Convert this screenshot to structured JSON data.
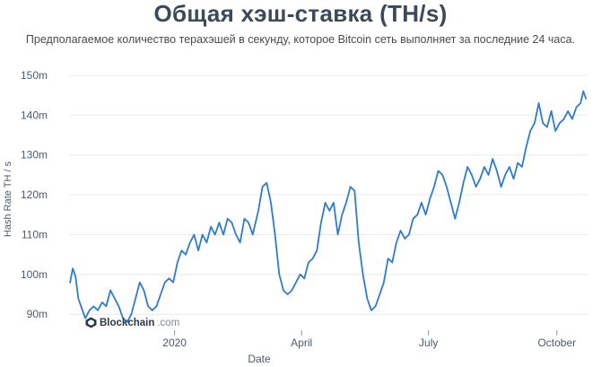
{
  "header": {
    "title": "Общая хэш-ставка (TH/s)",
    "subtitle": "Предполагаемое количество терахэшей в секунду, которое Bitcoin сеть выполняет за последние 24 часа."
  },
  "watermark": {
    "brand": "Blockchain",
    "suffix": ".com",
    "icon": "blockchain-logo-icon"
  },
  "colors": {
    "line": "#2f7bd0",
    "grid": "#e6e9ee",
    "text": "#4c5a6a"
  },
  "chart_data": {
    "type": "line",
    "xlabel": "Date",
    "ylabel": "Hash Rate TH / s",
    "x_ticks": [
      "2020",
      "April",
      "July",
      "October"
    ],
    "x_tick_dates": [
      "2020-01-01",
      "2020-04-01",
      "2020-07-01",
      "2020-10-01"
    ],
    "x_range": [
      "2019-10-18",
      "2020-10-23"
    ],
    "y_ticks": [
      "90m",
      "100m",
      "110m",
      "120m",
      "130m",
      "140m",
      "150m"
    ],
    "ylim": [
      86,
      152
    ],
    "grid": true,
    "legend": "none",
    "series": [
      {
        "values": [
          [
            "2019-10-18",
            97.8
          ],
          [
            "2019-10-20",
            101.5
          ],
          [
            "2019-10-22",
            99.5
          ],
          [
            "2019-10-24",
            94
          ],
          [
            "2019-10-26",
            92
          ],
          [
            "2019-10-29",
            89
          ],
          [
            "2019-11-01",
            91
          ],
          [
            "2019-11-04",
            92
          ],
          [
            "2019-11-07",
            91
          ],
          [
            "2019-11-10",
            93
          ],
          [
            "2019-11-13",
            92
          ],
          [
            "2019-11-16",
            96
          ],
          [
            "2019-11-19",
            94
          ],
          [
            "2019-11-22",
            92
          ],
          [
            "2019-11-25",
            89
          ],
          [
            "2019-11-28",
            88
          ],
          [
            "2019-12-01",
            90
          ],
          [
            "2019-12-04",
            94
          ],
          [
            "2019-12-07",
            98
          ],
          [
            "2019-12-10",
            96
          ],
          [
            "2019-12-13",
            92
          ],
          [
            "2019-12-16",
            91
          ],
          [
            "2019-12-19",
            92
          ],
          [
            "2019-12-22",
            95
          ],
          [
            "2019-12-25",
            98
          ],
          [
            "2019-12-28",
            99
          ],
          [
            "2019-12-31",
            98
          ],
          [
            "2020-01-03",
            103
          ],
          [
            "2020-01-06",
            106
          ],
          [
            "2020-01-09",
            105
          ],
          [
            "2020-01-12",
            108
          ],
          [
            "2020-01-15",
            110
          ],
          [
            "2020-01-18",
            106
          ],
          [
            "2020-01-21",
            110
          ],
          [
            "2020-01-24",
            108
          ],
          [
            "2020-01-27",
            112
          ],
          [
            "2020-01-30",
            110
          ],
          [
            "2020-02-02",
            113
          ],
          [
            "2020-02-05",
            110
          ],
          [
            "2020-02-08",
            114
          ],
          [
            "2020-02-11",
            113
          ],
          [
            "2020-02-14",
            110
          ],
          [
            "2020-02-17",
            108
          ],
          [
            "2020-02-20",
            114
          ],
          [
            "2020-02-23",
            113
          ],
          [
            "2020-02-26",
            110
          ],
          [
            "2020-03-01",
            116
          ],
          [
            "2020-03-04",
            122
          ],
          [
            "2020-03-07",
            123
          ],
          [
            "2020-03-10",
            118
          ],
          [
            "2020-03-13",
            110
          ],
          [
            "2020-03-16",
            100
          ],
          [
            "2020-03-19",
            96
          ],
          [
            "2020-03-22",
            95
          ],
          [
            "2020-03-25",
            96
          ],
          [
            "2020-03-28",
            98
          ],
          [
            "2020-03-31",
            100
          ],
          [
            "2020-04-03",
            99
          ],
          [
            "2020-04-06",
            103
          ],
          [
            "2020-04-09",
            104
          ],
          [
            "2020-04-12",
            106
          ],
          [
            "2020-04-15",
            113
          ],
          [
            "2020-04-18",
            118
          ],
          [
            "2020-04-21",
            116
          ],
          [
            "2020-04-24",
            118
          ],
          [
            "2020-04-27",
            110
          ],
          [
            "2020-04-30",
            115
          ],
          [
            "2020-05-03",
            118
          ],
          [
            "2020-05-06",
            122
          ],
          [
            "2020-05-09",
            121
          ],
          [
            "2020-05-12",
            108
          ],
          [
            "2020-05-15",
            100
          ],
          [
            "2020-05-18",
            94
          ],
          [
            "2020-05-21",
            91
          ],
          [
            "2020-05-24",
            92
          ],
          [
            "2020-05-27",
            95
          ],
          [
            "2020-05-30",
            98
          ],
          [
            "2020-06-02",
            104
          ],
          [
            "2020-06-05",
            103
          ],
          [
            "2020-06-08",
            108
          ],
          [
            "2020-06-11",
            111
          ],
          [
            "2020-06-14",
            109
          ],
          [
            "2020-06-17",
            110
          ],
          [
            "2020-06-20",
            114
          ],
          [
            "2020-06-23",
            115
          ],
          [
            "2020-06-26",
            118
          ],
          [
            "2020-06-29",
            115
          ],
          [
            "2020-07-02",
            119
          ],
          [
            "2020-07-05",
            122
          ],
          [
            "2020-07-08",
            126
          ],
          [
            "2020-07-11",
            125
          ],
          [
            "2020-07-14",
            122
          ],
          [
            "2020-07-17",
            118
          ],
          [
            "2020-07-20",
            114
          ],
          [
            "2020-07-23",
            118
          ],
          [
            "2020-07-26",
            123
          ],
          [
            "2020-07-29",
            127
          ],
          [
            "2020-08-01",
            125
          ],
          [
            "2020-08-04",
            122
          ],
          [
            "2020-08-07",
            124
          ],
          [
            "2020-08-10",
            127
          ],
          [
            "2020-08-13",
            125
          ],
          [
            "2020-08-16",
            129
          ],
          [
            "2020-08-19",
            126
          ],
          [
            "2020-08-22",
            122
          ],
          [
            "2020-08-25",
            125
          ],
          [
            "2020-08-28",
            127
          ],
          [
            "2020-08-31",
            124
          ],
          [
            "2020-09-03",
            128
          ],
          [
            "2020-09-06",
            127
          ],
          [
            "2020-09-09",
            132
          ],
          [
            "2020-09-12",
            136
          ],
          [
            "2020-09-15",
            138
          ],
          [
            "2020-09-18",
            143
          ],
          [
            "2020-09-21",
            138
          ],
          [
            "2020-09-24",
            137
          ],
          [
            "2020-09-27",
            141
          ],
          [
            "2020-09-30",
            136
          ],
          [
            "2020-10-03",
            138
          ],
          [
            "2020-10-06",
            139
          ],
          [
            "2020-10-09",
            141
          ],
          [
            "2020-10-12",
            139
          ],
          [
            "2020-10-15",
            142
          ],
          [
            "2020-10-18",
            143
          ],
          [
            "2020-10-20",
            146
          ],
          [
            "2020-10-22",
            144
          ]
        ]
      }
    ]
  }
}
